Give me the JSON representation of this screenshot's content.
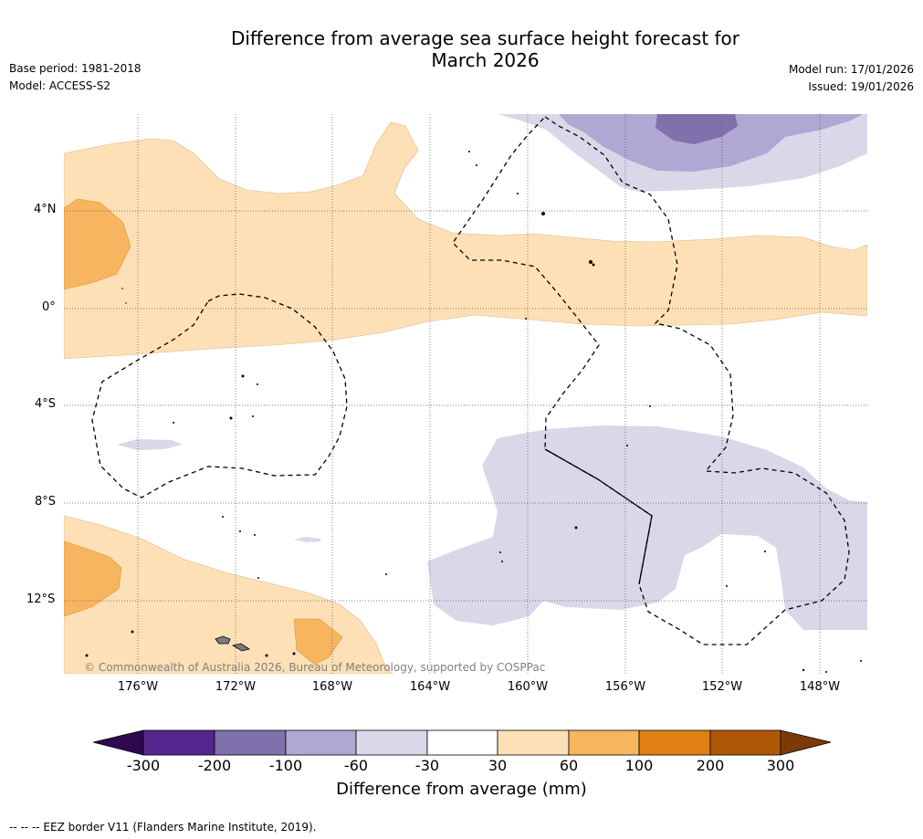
{
  "title_line1": "Difference from average sea surface height forecast for",
  "title_line2": "March 2026",
  "meta_left": {
    "base_period": "Base period: 1981-2018",
    "model": "Model: ACCESS-S2"
  },
  "meta_right": {
    "model_run": "Model run: 17/01/2026",
    "issued": "Issued: 19/01/2026"
  },
  "lat_labels": [
    "4°N",
    "0°",
    "4°S",
    "8°S",
    "12°S"
  ],
  "lon_labels": [
    "176°W",
    "172°W",
    "168°W",
    "164°W",
    "160°W",
    "156°W",
    "152°W",
    "148°W"
  ],
  "copyright": "© Commonwealth of Australia 2026, Bureau of Meteorology, supported by COSPPac",
  "colorbar": {
    "ticks": [
      "-300",
      "-200",
      "-100",
      "-60",
      "-30",
      "30",
      "60",
      "100",
      "200",
      "300"
    ],
    "colors": [
      "#2d0a4f",
      "#54278f",
      "#8070ab",
      "#b0a8d2",
      "#d8d8e9",
      "#ffffff",
      "#fde0b5",
      "#f8b55f",
      "#e08012",
      "#b05706",
      "#7b3a08"
    ],
    "title": "Difference from average (mm)"
  },
  "footer": "--  --  -- EEZ border V11 (Flanders Marine Institute, 2019)."
}
